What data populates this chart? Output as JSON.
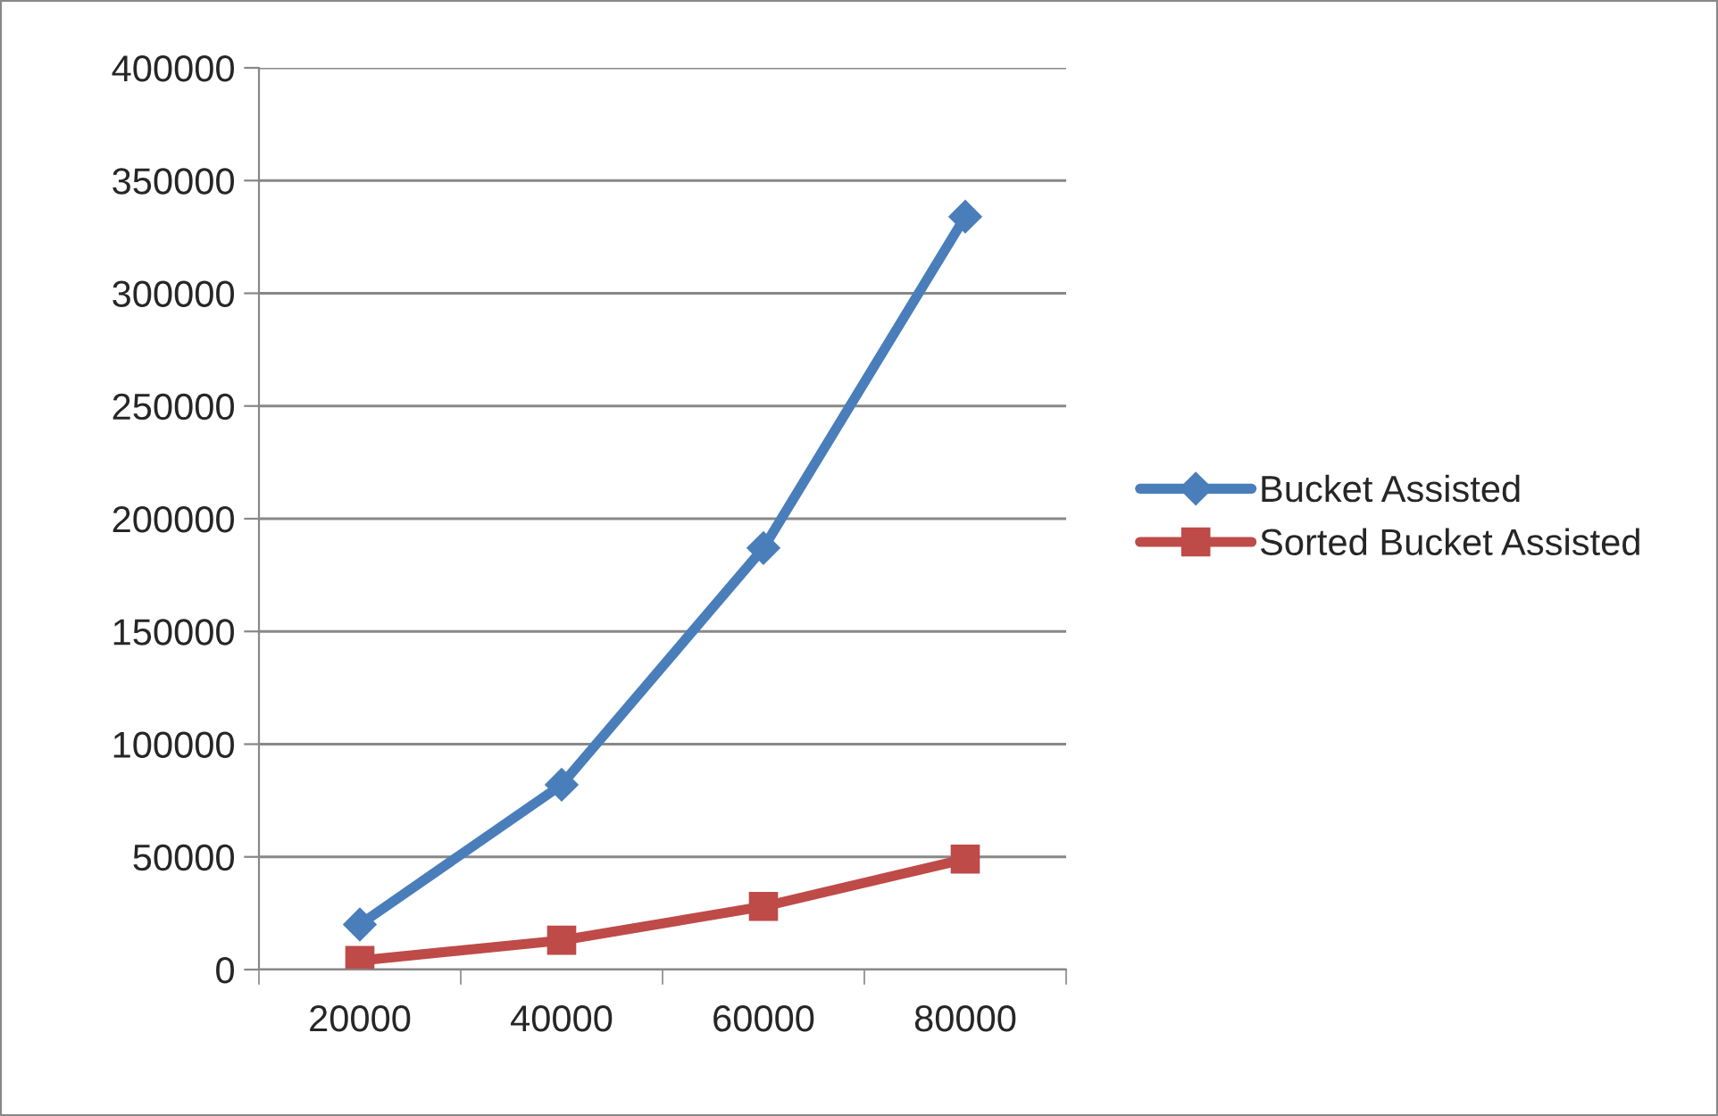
{
  "chart_data": {
    "type": "line",
    "categories": [
      "20000",
      "40000",
      "60000",
      "80000"
    ],
    "series": [
      {
        "name": "Bucket Assisted",
        "color": "#4a7ebb",
        "marker": "diamond",
        "values": [
          20000,
          82000,
          187000,
          334000
        ]
      },
      {
        "name": "Sorted Bucket Assisted",
        "color": "#be4b48",
        "marker": "square",
        "values": [
          4000,
          13000,
          28000,
          49000
        ]
      }
    ],
    "ylim": [
      0,
      400000
    ],
    "yticks": [
      0,
      50000,
      100000,
      150000,
      200000,
      250000,
      300000,
      350000,
      400000
    ],
    "grid": "y",
    "legend": "right",
    "line_style": "solid"
  }
}
